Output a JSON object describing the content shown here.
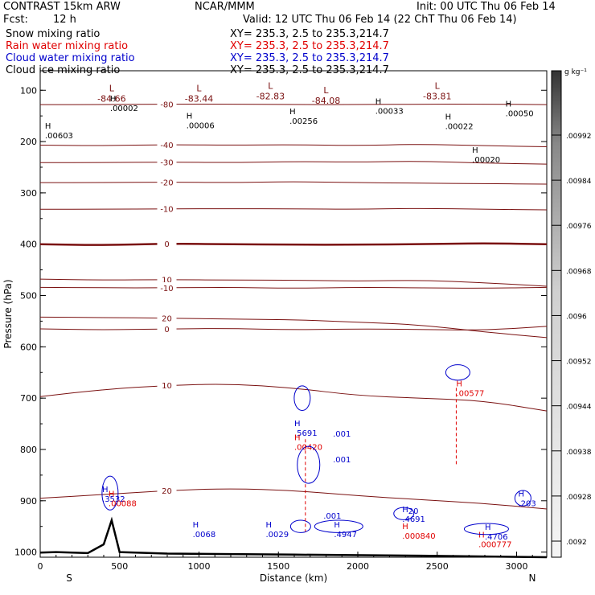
{
  "header": {
    "model": "CONTRAST 15km ARW",
    "org": "NCAR/MMM",
    "init": "Init: 00 UTC Thu 06 Feb 14",
    "fcst_label": "Fcst:",
    "fcst_value": "12 h",
    "valid": "Valid: 12 UTC Thu 06 Feb 14 (22 ChT Thu 06 Feb 14)"
  },
  "fields": [
    {
      "name": "Snow mixing ratio",
      "xy": "XY=  235.3,    2.5 to 235.3,214.7",
      "color": "#000000"
    },
    {
      "name": "Rain water mixing ratio",
      "xy": "XY=  235.3,    2.5 to 235.3,214.7",
      "color": "#e00000"
    },
    {
      "name": "Cloud water mixing ratio",
      "xy": "XY=  235.3,    2.5 to 235.3,214.7",
      "color": "#0000cc"
    },
    {
      "name": "Cloud ice mixing ratio",
      "xy": "XY=  235.3,    2.5 to 235.3,214.7",
      "color": "#000000"
    }
  ],
  "chart_data": {
    "type": "contour",
    "xlabel": "Distance (km)",
    "ylabel": "Pressure (hPa)",
    "xlim": [
      0,
      3190
    ],
    "ylim": [
      1010,
      62
    ],
    "xticks": [
      0,
      500,
      1000,
      1500,
      2000,
      2500,
      3000
    ],
    "yticks": [
      100,
      200,
      300,
      400,
      500,
      600,
      700,
      800,
      900,
      1000
    ],
    "x_end_labels": {
      "left": "S",
      "right": "N"
    },
    "temperature_contours": [
      {
        "label": "-80",
        "p": [
          128,
          128,
          127,
          127,
          128,
          128,
          127,
          127,
          128
        ]
      },
      {
        "label": "-40",
        "p": [
          207,
          208,
          206,
          207,
          206,
          208,
          205,
          208,
          210
        ]
      },
      {
        "label": "-30",
        "p": [
          241,
          241,
          240,
          241,
          239,
          240,
          238,
          242,
          244
        ]
      },
      {
        "label": "-20",
        "p": [
          280,
          280,
          279,
          280,
          278,
          280,
          281,
          282,
          283
        ]
      },
      {
        "label": "-10",
        "p": [
          332,
          332,
          331,
          331,
          331,
          332,
          330,
          332,
          333
        ]
      },
      {
        "label": "0",
        "p": [
          400,
          402,
          399,
          400,
          401,
          401,
          400,
          398,
          400
        ]
      },
      {
        "label": "10",
        "p": [
          468,
          470,
          469,
          470,
          470,
          472,
          470,
          475,
          482
        ]
      },
      {
        "label": "20",
        "p": [
          542,
          543,
          544,
          546,
          547,
          552,
          557,
          571,
          582
        ]
      },
      {
        "label": "-10",
        "p": [
          484,
          485,
          485,
          484,
          486,
          484,
          485,
          486,
          484
        ]
      },
      {
        "label": "0",
        "p": [
          565,
          567,
          565,
          564,
          567,
          565,
          566,
          568,
          560
        ]
      },
      {
        "label": "10",
        "p": [
          697,
          683,
          675,
          672,
          680,
          695,
          700,
          705,
          725
        ]
      },
      {
        "label": "20",
        "p": [
          895,
          888,
          880,
          876,
          880,
          890,
          898,
          905,
          916
        ]
      }
    ],
    "lows": [
      {
        "x": 450,
        "p": 102,
        "value": "-84.66"
      },
      {
        "x": 1000,
        "p": 102,
        "value": "-83.44"
      },
      {
        "x": 1450,
        "p": 97,
        "value": "-82.83"
      },
      {
        "x": 1800,
        "p": 106,
        "value": "-84.08"
      },
      {
        "x": 2500,
        "p": 97,
        "value": "-83.81"
      }
    ],
    "highs": [
      {
        "x": 440,
        "p": 125,
        "value": ".00002",
        "series": "snow"
      },
      {
        "x": 30,
        "p": 178,
        "value": ".00603",
        "series": "snow"
      },
      {
        "x": 920,
        "p": 158,
        "value": ".00006",
        "series": "snow"
      },
      {
        "x": 1570,
        "p": 150,
        "value": ".00256",
        "series": "snow"
      },
      {
        "x": 2110,
        "p": 130,
        "value": ".00033",
        "series": "snow"
      },
      {
        "x": 2550,
        "p": 160,
        "value": ".00022",
        "series": "snow"
      },
      {
        "x": 2930,
        "p": 135,
        "value": ".00050",
        "series": "snow"
      },
      {
        "x": 2720,
        "p": 225,
        "value": ".00020",
        "series": "snow"
      },
      {
        "x": 390,
        "p": 886,
        "value": ".3532",
        "series": "cloud"
      },
      {
        "x": 960,
        "p": 955,
        "value": ".0068",
        "series": "cloud"
      },
      {
        "x": 1420,
        "p": 955,
        "value": ".0029",
        "series": "cloud"
      },
      {
        "x": 1600,
        "p": 758,
        "value": ".5691",
        "series": "cloud"
      },
      {
        "x": 1850,
        "p": 955,
        "value": ".4947",
        "series": "cloud"
      },
      {
        "x": 2280,
        "p": 925,
        "value": ".4691",
        "series": "cloud"
      },
      {
        "x": 2800,
        "p": 960,
        "value": ".4706",
        "series": "cloud"
      },
      {
        "x": 3010,
        "p": 895,
        "value": ".203",
        "series": "cloud"
      },
      {
        "x": 1600,
        "p": 785,
        "value": ".00420",
        "series": "rain"
      },
      {
        "x": 2620,
        "p": 680,
        "value": ".00577",
        "series": "rain"
      },
      {
        "x": 2280,
        "p": 958,
        "value": ".000840",
        "series": "rain"
      },
      {
        "x": 2760,
        "p": 975,
        "value": ".000777",
        "series": "rain"
      },
      {
        "x": 430,
        "p": 895,
        "value": ".00088",
        "series": "rain"
      }
    ],
    "small_labels": [
      {
        "x": 1840,
        "p": 935,
        "text": ".001"
      },
      {
        "x": 1900,
        "p": 825,
        "text": ".001"
      },
      {
        "x": 1900,
        "p": 775,
        "text": ".001"
      },
      {
        "x": 2350,
        "p": 925,
        "text": "20"
      }
    ],
    "colorbar": {
      "unit": "g kg⁻¹",
      "labels": [
        ".00992",
        ".00984",
        ".00976",
        ".00968",
        ".0096",
        ".00952",
        ".00944",
        ".00938",
        ".00928",
        ".0092"
      ]
    },
    "surface": {
      "series": [
        [
          0,
          1001
        ],
        [
          100,
          1000
        ],
        [
          300,
          1002
        ],
        [
          400,
          985
        ],
        [
          450,
          938
        ],
        [
          500,
          1000
        ],
        [
          800,
          1003
        ],
        [
          1600,
          1005
        ],
        [
          2400,
          1007
        ],
        [
          3190,
          1010
        ]
      ]
    }
  }
}
